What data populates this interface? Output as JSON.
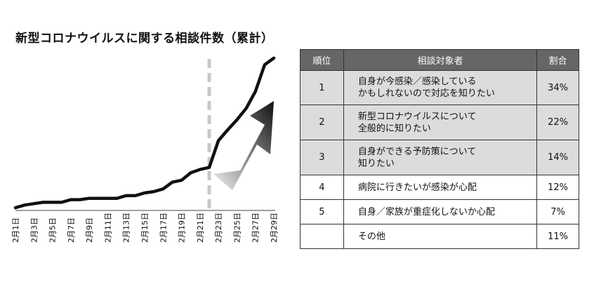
{
  "title": "新型コロナウイルスに関する相談件数（累計）",
  "chart_data": {
    "type": "line",
    "title": "新型コロナウイルスに関する相談件数（累計）",
    "xlabel": "",
    "ylabel": "",
    "grid": false,
    "x_tick_labels": [
      "2月1日",
      "2月3日",
      "2月5日",
      "2月7日",
      "2月9日",
      "2月11日",
      "2月13日",
      "2月15日",
      "2月17日",
      "2月19日",
      "2月21日",
      "2月23日",
      "2月25日",
      "2月27日",
      "2月29日"
    ],
    "x": [
      1,
      2,
      3,
      4,
      5,
      6,
      7,
      8,
      9,
      10,
      11,
      12,
      13,
      14,
      15,
      16,
      17,
      18,
      19,
      20,
      21,
      22,
      23,
      24,
      25,
      26,
      27,
      28,
      29
    ],
    "series": [
      {
        "values": [
          2,
          6,
          8,
          10,
          10,
          10,
          14,
          14,
          16,
          16,
          16,
          16,
          20,
          20,
          24,
          26,
          30,
          40,
          43,
          54,
          59,
          62,
          102,
          118,
          133,
          150,
          175,
          215,
          225
        ]
      }
    ],
    "ylim": [
      0,
      230
    ],
    "marker_date": "2月22日",
    "colors": {
      "line": "#111111",
      "marker": "#c8c8c8"
    }
  },
  "table": {
    "headers": [
      "順位",
      "相談対象者",
      "割合"
    ],
    "rows": [
      {
        "rank": "1",
        "line1": "自身が今感染／感染している",
        "line2": "かもしれないので対応を知りたい",
        "pct": "34%",
        "shaded": true
      },
      {
        "rank": "2",
        "line1": "新型コロナウイルスについて",
        "line2": "全般的に知りたい",
        "pct": "22%",
        "shaded": true
      },
      {
        "rank": "3",
        "line1": "自身ができる予防策について",
        "line2": "知りたい",
        "pct": "14%",
        "shaded": true
      },
      {
        "rank": "4",
        "line1": "病院に行きたいが感染が心配",
        "line2": "",
        "pct": "12%",
        "shaded": false
      },
      {
        "rank": "5",
        "line1": "自身／家族が重症化しないか心配",
        "line2": "",
        "pct": "7%",
        "shaded": false
      },
      {
        "rank": "",
        "line1": "その他",
        "line2": "",
        "pct": "11%",
        "shaded": false
      }
    ]
  }
}
